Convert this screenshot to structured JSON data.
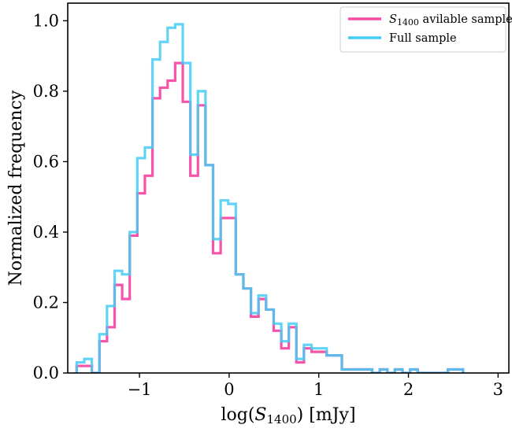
{
  "chart_data": {
    "type": "step-histogram",
    "xlabel": "log(S1400) [mJy]",
    "ylabel": "Normalized frequency",
    "xlim": [
      -1.8,
      3.12
    ],
    "ylim": [
      0,
      1.05
    ],
    "xticks": [
      -1,
      0,
      1,
      2,
      3
    ],
    "yticks": [
      0.0,
      0.2,
      0.4,
      0.6,
      0.8,
      1.0
    ],
    "xtick_labels": [
      "−1",
      "0",
      "1",
      "2",
      "3"
    ],
    "ytick_labels": [
      "0.0",
      "0.2",
      "0.4",
      "0.6",
      "0.8",
      "1.0"
    ],
    "bin_start": -1.7,
    "bin_width": 0.0845,
    "legend_position": "top-right",
    "series": [
      {
        "name": "S1400 avilable sample",
        "name_main": "S",
        "name_sub": "1400",
        "name_rest": " avilable sample",
        "color": "#f74aa3",
        "values": [
          0.02,
          0.02,
          0.0,
          0.09,
          0.13,
          0.25,
          0.21,
          0.39,
          0.51,
          0.56,
          0.78,
          0.81,
          0.83,
          0.88,
          0.77,
          0.56,
          0.76,
          0.59,
          0.34,
          0.44,
          0.44,
          0.28,
          0.24,
          0.16,
          0.21,
          0.18,
          0.12,
          0.07,
          0.13,
          0.03,
          0.07,
          0.06,
          0.06,
          0.05,
          0.05,
          0.01,
          0.01,
          0.01,
          0.01,
          0.0,
          0.01,
          0.0,
          0.01,
          0.0,
          0.01,
          0.0,
          0.0,
          0.0,
          0.0,
          0.01,
          0.01
        ]
      },
      {
        "name": "Full sample",
        "color": "#45ccf5",
        "values": [
          0.03,
          0.04,
          0.0,
          0.11,
          0.19,
          0.29,
          0.28,
          0.4,
          0.61,
          0.64,
          0.89,
          0.94,
          0.98,
          0.99,
          0.88,
          0.62,
          0.8,
          0.59,
          0.38,
          0.49,
          0.48,
          0.28,
          0.24,
          0.17,
          0.22,
          0.18,
          0.14,
          0.09,
          0.14,
          0.04,
          0.08,
          0.07,
          0.07,
          0.05,
          0.05,
          0.01,
          0.01,
          0.01,
          0.01,
          0.0,
          0.01,
          0.0,
          0.01,
          0.0,
          0.01,
          0.0,
          0.0,
          0.0,
          0.0,
          0.01,
          0.01
        ]
      }
    ],
    "overlap_color": "#4a9fe0"
  }
}
